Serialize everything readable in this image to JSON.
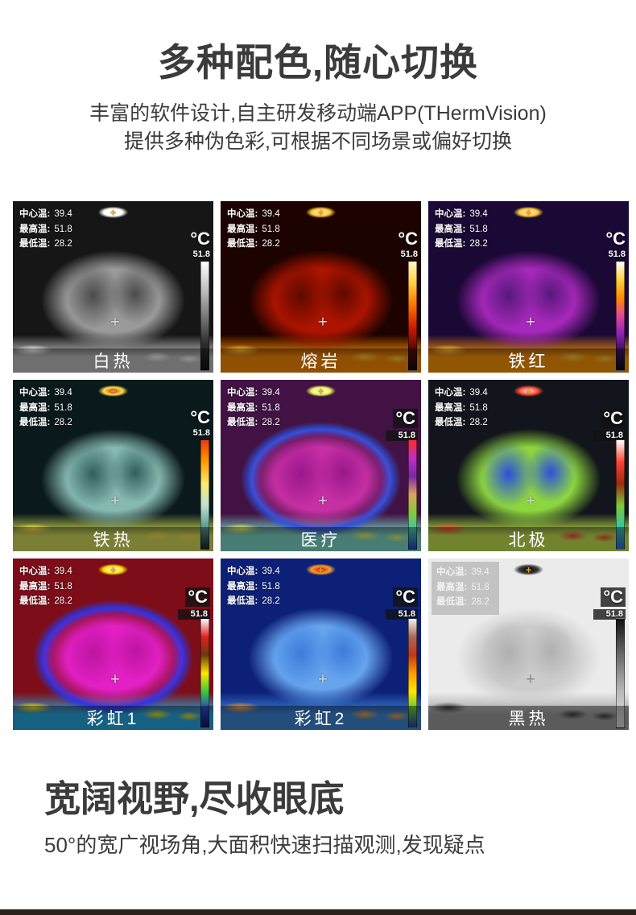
{
  "section1": {
    "title": "多种配色,随心切换",
    "subtitle_line1": "丰富的软件设计,自主研发移动端APP(THermVision)",
    "subtitle_line2": "提供多种伪色彩,可根据不同场景或偏好切换"
  },
  "overlay": {
    "readings": [
      {
        "label": "中心温:",
        "value": "39.4"
      },
      {
        "label": "最高温:",
        "value": "51.8"
      },
      {
        "label": "最低温:",
        "value": "28.2"
      }
    ],
    "scale_unit": "°C",
    "scale_max": "51.8"
  },
  "panels": [
    {
      "label": "白热",
      "colors": {
        "bg": "#161616",
        "body": "#9a9a9a",
        "inner": "#4b4b4b",
        "hot": "#ffffff",
        "hotcore": "#ffffff",
        "edge": "rgba(0,0,0,0)",
        "ground": "#c4c4c4"
      },
      "colorbar": [
        "#ffffff",
        "#c2c2c2",
        "#7a7a7a",
        "#2e2e2e",
        "#0a0a0a"
      ]
    },
    {
      "label": "熔岩",
      "colors": {
        "bg": "#1d0300",
        "body": "#ad1400",
        "inner": "#5e0a00",
        "hot": "#ffc838",
        "hotcore": "#fff6d0",
        "edge": "rgba(0,0,0,0)",
        "ground": "#ff8a00"
      },
      "colorbar": [
        "#fdf6c3",
        "#ffd23e",
        "#ff7300",
        "#d01d00",
        "#5c0700",
        "#160000"
      ]
    },
    {
      "label": "铁红",
      "colors": {
        "bg": "#1a0835",
        "body": "#a628ba",
        "inner": "#57197c",
        "hot": "#ffc838",
        "hotcore": "#fff6d0",
        "edge": "rgba(0,0,0,0)",
        "ground": "#ff9500"
      },
      "colorbar": [
        "#ffffff",
        "#ffd23e",
        "#ff8a00",
        "#e0489a",
        "#8d22b4",
        "#33104f",
        "#06001a"
      ]
    },
    {
      "label": "铁热",
      "colors": {
        "bg": "#0a191b",
        "body": "#86b9b0",
        "inner": "#30605b",
        "hot": "#ffe14a",
        "hotcore": "#e0281a",
        "edge": "rgba(0,0,0,0)",
        "ground": "#d9e05a"
      },
      "colorbar": [
        "#e83b10",
        "#ff9d00",
        "#ffe96e",
        "#bfe0d4",
        "#5b9a92",
        "#0d2826"
      ]
    },
    {
      "label": "医疗",
      "colors": {
        "bg": "#411243",
        "body": "#c72fa4",
        "inner": "#99188c",
        "hot": "#e9f757",
        "hotcore": "#ffffff",
        "edge": "#2d53e0",
        "ground": "#7bdcca"
      },
      "colorbar": [
        "#ff2a2a",
        "#c02cc4",
        "#7a28a8",
        "#e0a060",
        "#86c83c",
        "#40c4ae",
        "#2340bc"
      ]
    },
    {
      "label": "北极",
      "colors": {
        "bg": "#12161c",
        "body": "#8ed63e",
        "inner": "#2c50dc",
        "hot": "#ff4530",
        "hotcore": "#ffffff",
        "edge": "rgba(0,0,0,0)",
        "ground": "#c6e84e"
      },
      "colorbar": [
        "#ffffff",
        "#ff4330",
        "#9c2a10",
        "#7cc838",
        "#3cc49c",
        "#2b6cd8"
      ]
    },
    {
      "label": "彩虹1",
      "colors": {
        "bg": "#7d0d19",
        "body": "#e320c4",
        "inner": "#bd14a2",
        "hot": "#ffe100",
        "hotcore": "#ffffff",
        "edge": "#2b35e8",
        "ground": "#22aae4"
      },
      "colorbar": [
        "#ffffff",
        "#e02020",
        "#6b3a10",
        "#ffe600",
        "#42c838",
        "#2146c8",
        "#0d0d52"
      ]
    },
    {
      "label": "彩虹2",
      "colors": {
        "bg": "#0d2078",
        "body": "#66a4ee",
        "inner": "#3c7cda",
        "hot": "#ff9d2c",
        "hotcore": "#c81c06",
        "edge": "rgba(0,0,0,0)",
        "ground": "#3a86d8"
      },
      "colorbar": [
        "#f2f2f2",
        "#a86858",
        "#c03618",
        "#ff9c00",
        "#ffe600",
        "#62c838",
        "#1c3cae"
      ]
    },
    {
      "label": "黑热",
      "colors": {
        "bg": "#ebebeb",
        "body": "#cccccc",
        "inner": "#b0b0b0",
        "hot": "#3c3c3c",
        "hotcore": "#050505",
        "edge": "rgba(0,0,0,0)",
        "ground": "#9e9e9e"
      },
      "colorbar": [
        "#111111",
        "#6a6a6a",
        "#b8b8b8",
        "#e5e5e5"
      ]
    }
  ],
  "section2": {
    "title": "宽阔视野,尽收眼底",
    "subtitle": "50°的宽广视场角,大面积快速扫描观测,发现疑点"
  }
}
